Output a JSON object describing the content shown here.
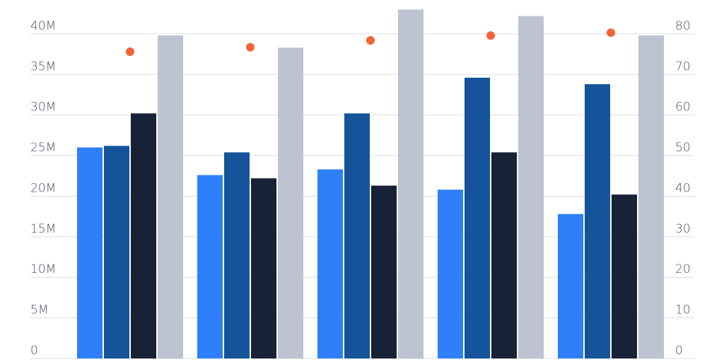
{
  "chart_data": {
    "type": "bar",
    "categories": [
      null,
      null,
      null,
      null,
      null
    ],
    "series": [
      {
        "color": "#2f7ff9",
        "values": [
          26000000,
          22600000,
          23300000,
          20800000,
          17800000
        ]
      },
      {
        "color": "#15549a",
        "values": [
          26200000,
          25400000,
          30200000,
          34600000,
          33800000
        ]
      },
      {
        "color": "#172236",
        "values": [
          30200000,
          22200000,
          21300000,
          25400000,
          20200000
        ]
      },
      {
        "color": "#bec3d1",
        "values": [
          39800000,
          38300000,
          43000000,
          42200000,
          39800000
        ]
      },
      {
        "type": "scatter",
        "axis": "y2",
        "color": "#f4623a",
        "values": [
          75.6,
          76.7,
          78.4,
          79.6,
          80.3
        ]
      }
    ],
    "ylim": [
      0,
      44000000
    ],
    "yticks": [
      0,
      {
        "value": 5000000,
        "label": "5M"
      },
      {
        "value": 10000000,
        "label": "10M"
      },
      {
        "value": 15000000,
        "label": "15M"
      },
      {
        "value": 20000000,
        "label": "20M"
      },
      {
        "value": 25000000,
        "label": "25M"
      },
      {
        "value": 30000000,
        "label": "30M"
      },
      {
        "value": 35000000,
        "label": "35M"
      },
      {
        "value": 40000000,
        "label": "40M"
      }
    ],
    "y2lim": [
      0,
      88
    ],
    "y2ticks": [
      0,
      10,
      20,
      30,
      40,
      50,
      60,
      70,
      80
    ],
    "grid": true
  }
}
